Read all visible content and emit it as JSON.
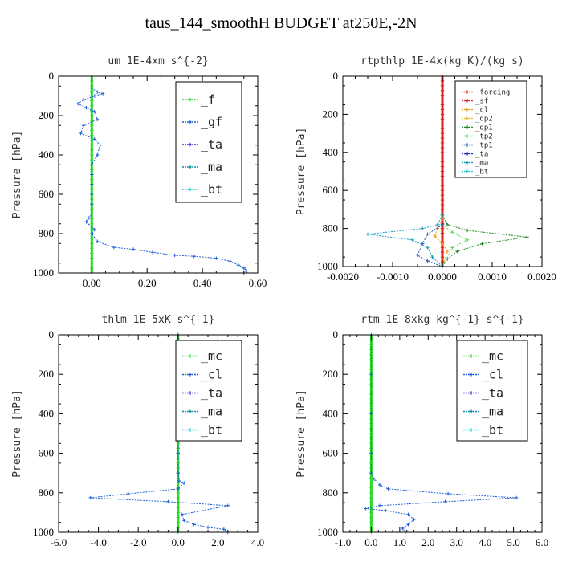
{
  "title": "taus_144_smoothH  BUDGET at250E,-2N",
  "chart_data": [
    {
      "type": "line",
      "title": "um   1E-4xm s^{-2}",
      "ylabel": "Pressure [hPa]",
      "xlim": [
        -0.12,
        0.6
      ],
      "ylim": [
        1000,
        0
      ],
      "xticks": [
        0.0,
        0.2,
        0.4,
        0.6
      ],
      "xtick_labels": [
        "0.00",
        "0.20",
        "0.40",
        "0.60"
      ],
      "yticks": [
        0,
        200,
        400,
        600,
        800,
        1000
      ],
      "ytick_labels": [
        "0",
        "200",
        "400",
        "600",
        "800",
        "1000"
      ],
      "legend_position": "top-right",
      "legend_size": "large",
      "series": [
        {
          "name": "_f",
          "color": "#2bd92b",
          "points": [
            [
              0,
              0
            ],
            [
              0,
              100
            ],
            [
              0,
              200
            ],
            [
              0,
              300
            ],
            [
              0,
              400
            ],
            [
              0,
              500
            ],
            [
              0,
              600
            ],
            [
              0,
              700
            ],
            [
              0,
              800
            ],
            [
              0,
              900
            ],
            [
              0,
              1000
            ]
          ]
        },
        {
          "name": "_gf",
          "color": "#1a5fd6",
          "points": [
            [
              0,
              0
            ],
            [
              0,
              60
            ],
            [
              0.02,
              80
            ],
            [
              0.04,
              88
            ],
            [
              0.01,
              100
            ],
            [
              -0.03,
              120
            ],
            [
              -0.05,
              140
            ],
            [
              -0.02,
              160
            ],
            [
              0.01,
              180
            ],
            [
              0.02,
              220
            ],
            [
              -0.03,
              250
            ],
            [
              -0.04,
              290
            ],
            [
              0.01,
              320
            ],
            [
              0.03,
              350
            ],
            [
              0.02,
              400
            ],
            [
              0,
              450
            ],
            [
              0,
              500
            ],
            [
              0,
              550
            ],
            [
              0,
              600
            ],
            [
              0,
              650
            ],
            [
              0,
              700
            ],
            [
              -0.01,
              720
            ],
            [
              -0.02,
              740
            ],
            [
              0.01,
              780
            ],
            [
              0,
              800
            ],
            [
              0.02,
              840
            ],
            [
              0.08,
              870
            ],
            [
              0.15,
              880
            ],
            [
              0.22,
              895
            ],
            [
              0.3,
              910
            ],
            [
              0.37,
              915
            ],
            [
              0.45,
              925
            ],
            [
              0.5,
              940
            ],
            [
              0.53,
              960
            ],
            [
              0.55,
              975
            ],
            [
              0.56,
              990
            ],
            [
              0.55,
              1000
            ]
          ]
        },
        {
          "name": "_ta",
          "color": "#2a2ad6",
          "points": []
        },
        {
          "name": "_ma",
          "color": "#0f8ca0",
          "points": []
        },
        {
          "name": "_bt",
          "color": "#18d0d0",
          "points": []
        }
      ]
    },
    {
      "type": "line",
      "title": "rtpthlp   1E-4x(kg K)/(kg s)",
      "ylabel": "Pressure [hPa]",
      "xlim": [
        -0.002,
        0.002
      ],
      "ylim": [
        1000,
        0
      ],
      "xticks": [
        -0.002,
        -0.001,
        0.0,
        0.001,
        0.002
      ],
      "xtick_labels": [
        "-0.0020",
        "-0.0010",
        "0.0000",
        "0.0010",
        "0.0020"
      ],
      "yticks": [
        0,
        200,
        400,
        600,
        800,
        1000
      ],
      "ytick_labels": [
        "0",
        "200",
        "400",
        "600",
        "800",
        "1000"
      ],
      "legend_position": "top-right",
      "legend_size": "small",
      "series": [
        {
          "name": "_forcing",
          "color": "#e02020",
          "points": [
            [
              0,
              0
            ],
            [
              0,
              200
            ],
            [
              0,
              400
            ],
            [
              0,
              600
            ],
            [
              0,
              800
            ],
            [
              0,
              1000
            ]
          ]
        },
        {
          "name": "_sf",
          "color": "#d02a2a",
          "points": []
        },
        {
          "name": "_cl",
          "color": "#f0a020",
          "points": [
            [
              0,
              750
            ],
            [
              -0.0001,
              800
            ],
            [
              -0.00015,
              840
            ],
            [
              0,
              880
            ],
            [
              0.0001,
              920
            ],
            [
              0,
              1000
            ]
          ]
        },
        {
          "name": "_dp2",
          "color": "#e8c020",
          "points": []
        },
        {
          "name": "_dp1",
          "color": "#208820",
          "points": [
            [
              0,
              730
            ],
            [
              0.0001,
              780
            ],
            [
              0.0005,
              810
            ],
            [
              0.0017,
              845
            ],
            [
              0.0008,
              880
            ],
            [
              0.0003,
              920
            ],
            [
              0.0001,
              960
            ],
            [
              0,
              1000
            ]
          ]
        },
        {
          "name": "_tp2",
          "color": "#60d060",
          "points": [
            [
              0,
              780
            ],
            [
              0.0002,
              820
            ],
            [
              0.0005,
              860
            ],
            [
              0.0002,
              900
            ],
            [
              0,
              1000
            ]
          ]
        },
        {
          "name": "_tp1",
          "color": "#2050c0",
          "points": [
            [
              0,
              780
            ],
            [
              -0.0003,
              830
            ],
            [
              -0.0004,
              880
            ],
            [
              -0.0005,
              940
            ],
            [
              -0.0003,
              970
            ],
            [
              0,
              1000
            ]
          ]
        },
        {
          "name": "_ta",
          "color": "#2020c0",
          "points": []
        },
        {
          "name": "_ma",
          "color": "#1aa0c0",
          "points": [
            [
              0,
              730
            ],
            [
              -0.0001,
              780
            ],
            [
              -0.0004,
              800
            ],
            [
              -0.0015,
              830
            ],
            [
              -0.0006,
              860
            ],
            [
              -0.0003,
              900
            ],
            [
              -0.0002,
              950
            ],
            [
              0,
              1000
            ]
          ]
        },
        {
          "name": "_bt",
          "color": "#20d0e0",
          "points": []
        }
      ]
    },
    {
      "type": "line",
      "title": "thlm   1E-5xK s^{-1}",
      "ylabel": "Pressure [hPa]",
      "xlim": [
        -6.0,
        4.0
      ],
      "ylim": [
        1000,
        0
      ],
      "xticks": [
        -6,
        -4,
        -2,
        0,
        2,
        4
      ],
      "xtick_labels": [
        "-6.0",
        "-4.0",
        "-2.0",
        "0.0",
        "2.0",
        "4.0"
      ],
      "yticks": [
        0,
        200,
        400,
        600,
        800,
        1000
      ],
      "ytick_labels": [
        "0",
        "200",
        "400",
        "600",
        "800",
        "1000"
      ],
      "legend_position": "top-right",
      "legend_size": "large",
      "series": [
        {
          "name": "_mc",
          "color": "#2bd92b",
          "points": [
            [
              0,
              0
            ],
            [
              0,
              100
            ],
            [
              0,
              200
            ],
            [
              0,
              300
            ],
            [
              0,
              400
            ],
            [
              0,
              500
            ],
            [
              0,
              600
            ],
            [
              0,
              700
            ],
            [
              0,
              800
            ],
            [
              0,
              900
            ],
            [
              0,
              1000
            ]
          ]
        },
        {
          "name": "_cl",
          "color": "#1a5fd6",
          "points": [
            [
              0,
              0
            ],
            [
              0,
              200
            ],
            [
              0,
              400
            ],
            [
              0,
              600
            ],
            [
              0,
              700
            ],
            [
              0.05,
              740
            ],
            [
              0.3,
              750
            ],
            [
              0,
              780
            ],
            [
              -2.5,
              805
            ],
            [
              -4.4,
              825
            ],
            [
              -0.5,
              845
            ],
            [
              2.5,
              865
            ],
            [
              0.2,
              910
            ],
            [
              0.3,
              940
            ],
            [
              0.8,
              960
            ],
            [
              1.5,
              975
            ],
            [
              2.3,
              985
            ],
            [
              2.5,
              1000
            ]
          ]
        },
        {
          "name": "_ta",
          "color": "#2a2ad6",
          "points": []
        },
        {
          "name": "_ma",
          "color": "#0f8ca0",
          "points": []
        },
        {
          "name": "_bt",
          "color": "#18d0d0",
          "points": []
        }
      ]
    },
    {
      "type": "line",
      "title": "rtm   1E-8xkg kg^{-1} s^{-1}",
      "ylabel": "Pressure [hPa]",
      "xlim": [
        -1.0,
        6.0
      ],
      "ylim": [
        1000,
        0
      ],
      "xticks": [
        -1,
        0,
        1,
        2,
        3,
        4,
        5,
        6
      ],
      "xtick_labels": [
        "-1.0",
        "0.0",
        "1.0",
        "2.0",
        "3.0",
        "4.0",
        "5.0",
        "6.0"
      ],
      "yticks": [
        0,
        200,
        400,
        600,
        800,
        1000
      ],
      "ytick_labels": [
        "0",
        "200",
        "400",
        "600",
        "800",
        "1000"
      ],
      "legend_position": "top-right",
      "legend_size": "large",
      "series": [
        {
          "name": "_mc",
          "color": "#2bd92b",
          "points": [
            [
              0,
              0
            ],
            [
              0,
              100
            ],
            [
              0,
              200
            ],
            [
              0,
              300
            ],
            [
              0,
              400
            ],
            [
              0,
              500
            ],
            [
              0,
              600
            ],
            [
              0,
              700
            ],
            [
              0,
              800
            ],
            [
              0,
              900
            ],
            [
              0,
              1000
            ]
          ]
        },
        {
          "name": "_cl",
          "color": "#1a5fd6",
          "points": [
            [
              0,
              0
            ],
            [
              0,
              200
            ],
            [
              0,
              400
            ],
            [
              0,
              600
            ],
            [
              0,
              700
            ],
            [
              0.1,
              730
            ],
            [
              0.3,
              760
            ],
            [
              0.6,
              780
            ],
            [
              2.7,
              805
            ],
            [
              5.1,
              825
            ],
            [
              2.6,
              845
            ],
            [
              0.3,
              865
            ],
            [
              -0.2,
              880
            ],
            [
              0.5,
              890
            ],
            [
              1.3,
              910
            ],
            [
              1.5,
              935
            ],
            [
              1.3,
              960
            ],
            [
              1.1,
              980
            ],
            [
              1.2,
              1000
            ]
          ]
        },
        {
          "name": "_ta",
          "color": "#2a2ad6",
          "points": []
        },
        {
          "name": "_ma",
          "color": "#0f8ca0",
          "points": []
        },
        {
          "name": "_bt",
          "color": "#18d0d0",
          "points": []
        }
      ]
    }
  ]
}
